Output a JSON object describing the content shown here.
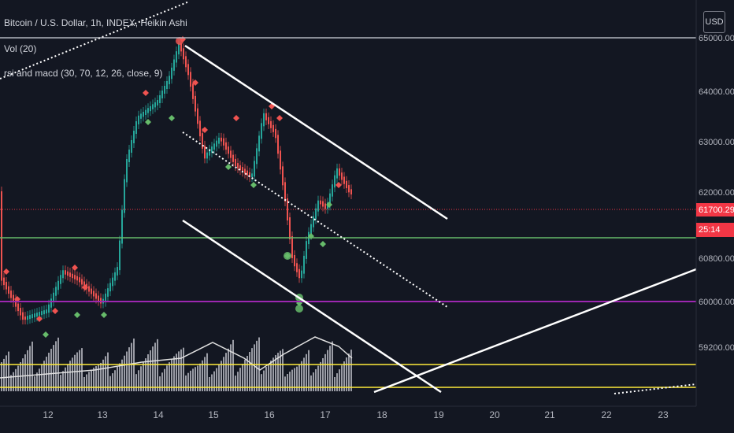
{
  "legend": {
    "symbol": "Bitcoin / U.S. Dollar, 1h, INDEX, Heikin Ashi",
    "volume": "Vol (20)",
    "indicator": "rsi and macd (30, 70, 12, 26, close, 9)"
  },
  "currency_button": "USD",
  "price_axis": {
    "ticks": [
      "65000.00",
      "64000.00",
      "63000.00",
      "62000.00",
      "60800.00",
      "60000.00",
      "59200.00"
    ],
    "current_price": "61700.29",
    "countdown": "25:14"
  },
  "time_axis": {
    "ticks": [
      "12",
      "13",
      "14",
      "15",
      "16",
      "17",
      "18",
      "19",
      "20",
      "21",
      "22",
      "23"
    ]
  },
  "colors": {
    "background": "#131722",
    "candle_up": "#26a69a",
    "candle_down": "#ef5350",
    "line_white": "#ffffff",
    "line_green": "#66bb6a",
    "line_purple": "#9c27b0",
    "line_yellow": "#ffeb3b",
    "price_tag": "#f23645"
  }
}
